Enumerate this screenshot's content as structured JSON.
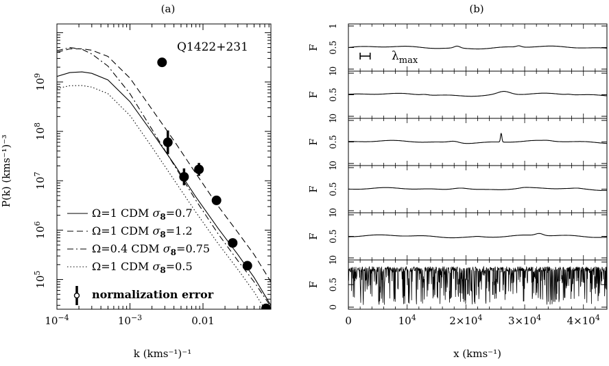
{
  "chart_data": [
    {
      "panel_label": "(a)",
      "type": "line",
      "xlabel": "k (kms⁻¹)⁻¹",
      "ylabel": "P(k) (kms⁻¹)⁻³",
      "xscale": "log",
      "yscale": "log",
      "xlim": [
        0.0001,
        0.085
      ],
      "ylim": [
        25000,
        15000000000
      ],
      "x_ticks": [
        {
          "value": 0.0001,
          "label": "10",
          "exp": "−4"
        },
        {
          "value": 0.001,
          "label": "10",
          "exp": "−3"
        },
        {
          "value": 0.01,
          "label": "0.01",
          "exp": ""
        }
      ],
      "y_ticks": [
        {
          "value": 100000,
          "label": "10",
          "exp": "5"
        },
        {
          "value": 1000000,
          "label": "10",
          "exp": "6"
        },
        {
          "value": 10000000,
          "label": "10",
          "exp": "7"
        },
        {
          "value": 100000000,
          "label": "10",
          "exp": "8"
        },
        {
          "value": 1000000000,
          "label": "10",
          "exp": "9"
        }
      ],
      "series": [
        {
          "prefix": "Ω=1 CDM ",
          "sigma_label": "σ",
          "sigma_sub": "8",
          "sigma_value": "=0.7",
          "dash": "solid",
          "x": [
            0.0001,
            0.00015,
            0.00022,
            0.0003,
            0.0005,
            0.001,
            0.002,
            0.004,
            0.008,
            0.016,
            0.03,
            0.05,
            0.085
          ],
          "y": [
            1300000000,
            1550000000,
            1600000000,
            1500000000,
            1100000000,
            400000000,
            96000000,
            22000000,
            4700000,
            1100000,
            320000,
            110000,
            30000
          ]
        },
        {
          "prefix": "Ω=1 CDM ",
          "sigma_label": "σ",
          "sigma_sub": "8",
          "sigma_value": "=1.2",
          "dash": "dashed",
          "x": [
            0.0001,
            0.00015,
            0.00022,
            0.0003,
            0.0005,
            0.001,
            0.002,
            0.004,
            0.008,
            0.016,
            0.03,
            0.05,
            0.085
          ],
          "y": [
            4000000000,
            4700000000,
            4700000000,
            4400000000,
            3300000000,
            1200000000,
            280000000,
            65000000,
            14000000,
            3100000,
            900000,
            320000,
            90000
          ]
        },
        {
          "prefix": "Ω=0.4 CDM ",
          "sigma_label": "σ",
          "sigma_sub": "8",
          "sigma_value": "=0.75",
          "dash": "dashdot",
          "x": [
            0.0001,
            0.00015,
            0.00022,
            0.0003,
            0.0005,
            0.001,
            0.002,
            0.004,
            0.008,
            0.016,
            0.03,
            0.05,
            0.085
          ],
          "y": [
            4300000000,
            5000000000,
            4600000000,
            3700000000,
            2100000000,
            580000000,
            110000000,
            21000000,
            4000000,
            850000,
            240000,
            90000,
            28000
          ]
        },
        {
          "prefix": "Ω=1 CDM ",
          "sigma_label": "σ",
          "sigma_sub": "8",
          "sigma_value": "=0.5",
          "dash": "dotted",
          "x": [
            0.0001,
            0.00015,
            0.00022,
            0.0003,
            0.0005,
            0.001,
            0.002,
            0.004,
            0.008,
            0.016,
            0.03,
            0.05,
            0.085
          ],
          "y": [
            740000000,
            840000000,
            850000000,
            790000000,
            580000000,
            210000000,
            48000000,
            10500000,
            2300000,
            540000,
            160000,
            56000,
            16000
          ]
        }
      ],
      "points": {
        "name": "Q1422+231",
        "x": [
          0.00275,
          0.0033,
          0.0055,
          0.0088,
          0.0153,
          0.0255,
          0.0405,
          0.073
        ],
        "y": [
          2500000000,
          60000000,
          12000000,
          17000000,
          4000000,
          550000,
          190000,
          26000
        ],
        "err": [
          0,
          0.24,
          0.17,
          0.13,
          0.09,
          0,
          0,
          0
        ]
      },
      "norm_error_label": "normalization error"
    },
    {
      "panel_label": "(b)",
      "type": "line",
      "xlabel": "x (kms⁻¹)",
      "ylabel": "F",
      "xlim": [
        0,
        44000
      ],
      "x_ticks": [
        {
          "value": 0,
          "label": "0",
          "exp": ""
        },
        {
          "value": 10000,
          "label": "10",
          "exp": "4"
        },
        {
          "value": 20000,
          "label": "2×10",
          "exp": "4"
        },
        {
          "value": 30000,
          "label": "3×10",
          "exp": "4"
        },
        {
          "value": 40000,
          "label": "4×10",
          "exp": "4"
        }
      ],
      "strip_ylim": [
        0,
        1
      ],
      "strip_ticks": [
        "0",
        "0.5",
        "1"
      ],
      "lambda_label": "λ",
      "lambda_sub": "max",
      "lambda_bar_kms": [
        2000,
        3700
      ],
      "strips": [
        {
          "base": 0.5,
          "bumps": [
            [
              18500,
              0.045,
              700
            ],
            [
              29000,
              0.03,
              600
            ]
          ]
        },
        {
          "base": 0.5,
          "bumps": [
            [
              13000,
              0.018,
              900
            ],
            [
              26500,
              0.07,
              1500
            ],
            [
              37500,
              0.012,
              700
            ]
          ]
        },
        {
          "base": 0.5,
          "bumps": [
            [
              18000,
              0.04,
              1200
            ],
            [
              26000,
              0.2,
              170
            ],
            [
              34000,
              0.01,
              900
            ]
          ]
        },
        {
          "base": 0.5,
          "bumps": [
            [
              19000,
              0.06,
              2000
            ],
            [
              30000,
              0.012,
              1000
            ],
            [
              39000,
              0.008,
              900
            ]
          ]
        },
        {
          "base": 0.5,
          "bumps": [
            [
              32500,
              0.05,
              900
            ],
            [
              22000,
              0.01,
              900
            ]
          ]
        },
        {
          "noisy": true
        }
      ]
    }
  ]
}
